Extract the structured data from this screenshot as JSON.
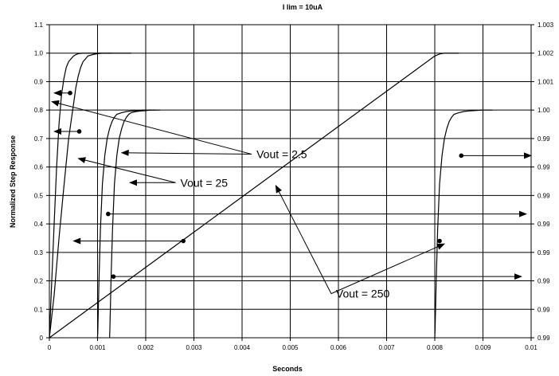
{
  "chart_data": {
    "type": "line",
    "title": "I lim = 10uA",
    "xlabel": "Seconds",
    "ylabel": "Normalized Step Response",
    "xlim": [
      0,
      0.01
    ],
    "ylim": [
      0,
      1.1
    ],
    "x_ticks": [
      "0",
      "0.001",
      "0.002",
      "0.003",
      "0.004",
      "0.005",
      "0.006",
      "0.007",
      "0.008",
      "0.009",
      "0.01"
    ],
    "y_ticks": [
      "0",
      "0.1",
      "0.2",
      "0.3",
      "0.4",
      "0.5",
      "0.6",
      "0.7",
      "0.8",
      "0.9",
      "1.0",
      "1.1"
    ],
    "y2_ticks": [
      "0.99",
      "0.99",
      "0.99",
      "0.99",
      "0.99",
      "0.99",
      "0.99",
      "0.99",
      "1.00",
      "1.001",
      "1.002",
      "1.003"
    ],
    "grid": true,
    "legend": "none",
    "series": [
      {
        "x": [
          0,
          5e-05,
          0.0001,
          0.00015,
          0.0002,
          0.00025,
          0.0003,
          0.00035,
          0.0004,
          0.00045,
          0.0005,
          0.00055,
          0.0006,
          0.0007,
          0.0008,
          0.001,
          0.0012,
          0.0013
        ],
        "y": [
          0,
          0.2,
          0.4,
          0.6,
          0.75,
          0.85,
          0.91,
          0.95,
          0.97,
          0.98,
          0.99,
          0.995,
          0.998,
          1.0,
          1.0,
          1.0,
          1.0,
          1.0
        ]
      },
      {
        "x": [
          0,
          0.0001,
          0.0002,
          0.0003,
          0.0004,
          0.0005,
          0.00055,
          0.0006,
          0.00065,
          0.0007,
          0.00075,
          0.0008,
          0.0009,
          0.001,
          0.0011,
          0.0012,
          0.0014,
          0.0017
        ],
        "y": [
          0,
          0.15,
          0.35,
          0.53,
          0.7,
          0.82,
          0.88,
          0.92,
          0.95,
          0.97,
          0.98,
          0.99,
          0.995,
          0.998,
          1.0,
          1.0,
          1.0,
          1.0
        ]
      },
      {
        "x": [
          0.001,
          0.001005,
          0.00103,
          0.00106,
          0.0011,
          0.00115,
          0.0012,
          0.00125,
          0.0013,
          0.00135,
          0.0014,
          0.0015,
          0.0016,
          0.0017,
          0.0018,
          0.002,
          0.0022
        ],
        "y": [
          0,
          0.02,
          0.2,
          0.38,
          0.54,
          0.64,
          0.7,
          0.735,
          0.76,
          0.775,
          0.785,
          0.791,
          0.795,
          0.797,
          0.798,
          0.8,
          0.8
        ]
      },
      {
        "x": [
          0.00125,
          0.001255,
          0.00128,
          0.00131,
          0.00135,
          0.0014,
          0.00145,
          0.0015,
          0.00155,
          0.0016,
          0.00165,
          0.0017,
          0.0018,
          0.0019,
          0.002,
          0.0021,
          0.0023
        ],
        "y": [
          0,
          0.02,
          0.2,
          0.38,
          0.54,
          0.64,
          0.7,
          0.735,
          0.76,
          0.775,
          0.785,
          0.791,
          0.795,
          0.797,
          0.798,
          0.8,
          0.8
        ]
      },
      {
        "x": [
          0,
          0.008,
          0.0081,
          0.0082,
          0.0083,
          0.0085
        ],
        "y": [
          0,
          0.99,
          0.997,
          1.0,
          1.0,
          1.0
        ]
      },
      {
        "x": [
          0.008,
          0.008005,
          0.00803,
          0.00806,
          0.0081,
          0.00815,
          0.0082,
          0.00825,
          0.0083,
          0.00835,
          0.0084,
          0.0085,
          0.0086,
          0.0087,
          0.0088,
          0.009,
          0.0092
        ],
        "y": [
          0,
          0.02,
          0.2,
          0.38,
          0.54,
          0.64,
          0.7,
          0.735,
          0.76,
          0.775,
          0.785,
          0.791,
          0.795,
          0.797,
          0.798,
          0.8,
          0.8
        ]
      }
    ],
    "markers": [
      {
        "x": 0.00043,
        "y": 0.86
      },
      {
        "x": 0.00062,
        "y": 0.725
      },
      {
        "x": 0.00122,
        "y": 0.435
      },
      {
        "x": 0.00133,
        "y": 0.215
      },
      {
        "x": 0.00278,
        "y": 0.34
      },
      {
        "x": 0.0081,
        "y": 0.34
      },
      {
        "x": 0.00855,
        "y": 0.64
      }
    ],
    "pointer_arrows": [
      {
        "from": [
          0.00043,
          0.86
        ],
        "to": [
          0.0001,
          0.86
        ]
      },
      {
        "from": [
          0.00062,
          0.725
        ],
        "to": [
          0.0001,
          0.725
        ]
      },
      {
        "from": [
          0.00278,
          0.34
        ],
        "to": [
          0.0005,
          0.34
        ]
      },
      {
        "from": [
          0.00855,
          0.64
        ],
        "to": [
          0.01,
          0.64
        ]
      },
      {
        "from": [
          0.00122,
          0.435
        ],
        "to": [
          0.0099,
          0.435
        ]
      },
      {
        "from": [
          0.00133,
          0.215
        ],
        "to": [
          0.0098,
          0.215
        ]
      }
    ],
    "annotations": [
      {
        "text": "Vout = 2.5",
        "x": 0.0042,
        "y": 0.645,
        "arrows_to": [
          [
            5e-05,
            0.83
          ],
          [
            0.0015,
            0.65
          ]
        ]
      },
      {
        "text": "Vout = 25",
        "x": 0.00262,
        "y": 0.545,
        "arrows_to": [
          [
            0.0006,
            0.63
          ],
          [
            0.00167,
            0.545
          ]
        ]
      },
      {
        "text": "Vout = 250",
        "x": 0.00585,
        "y": 0.155,
        "arrows_to": [
          [
            0.0047,
            0.535
          ],
          [
            0.0082,
            0.33
          ]
        ]
      }
    ]
  }
}
